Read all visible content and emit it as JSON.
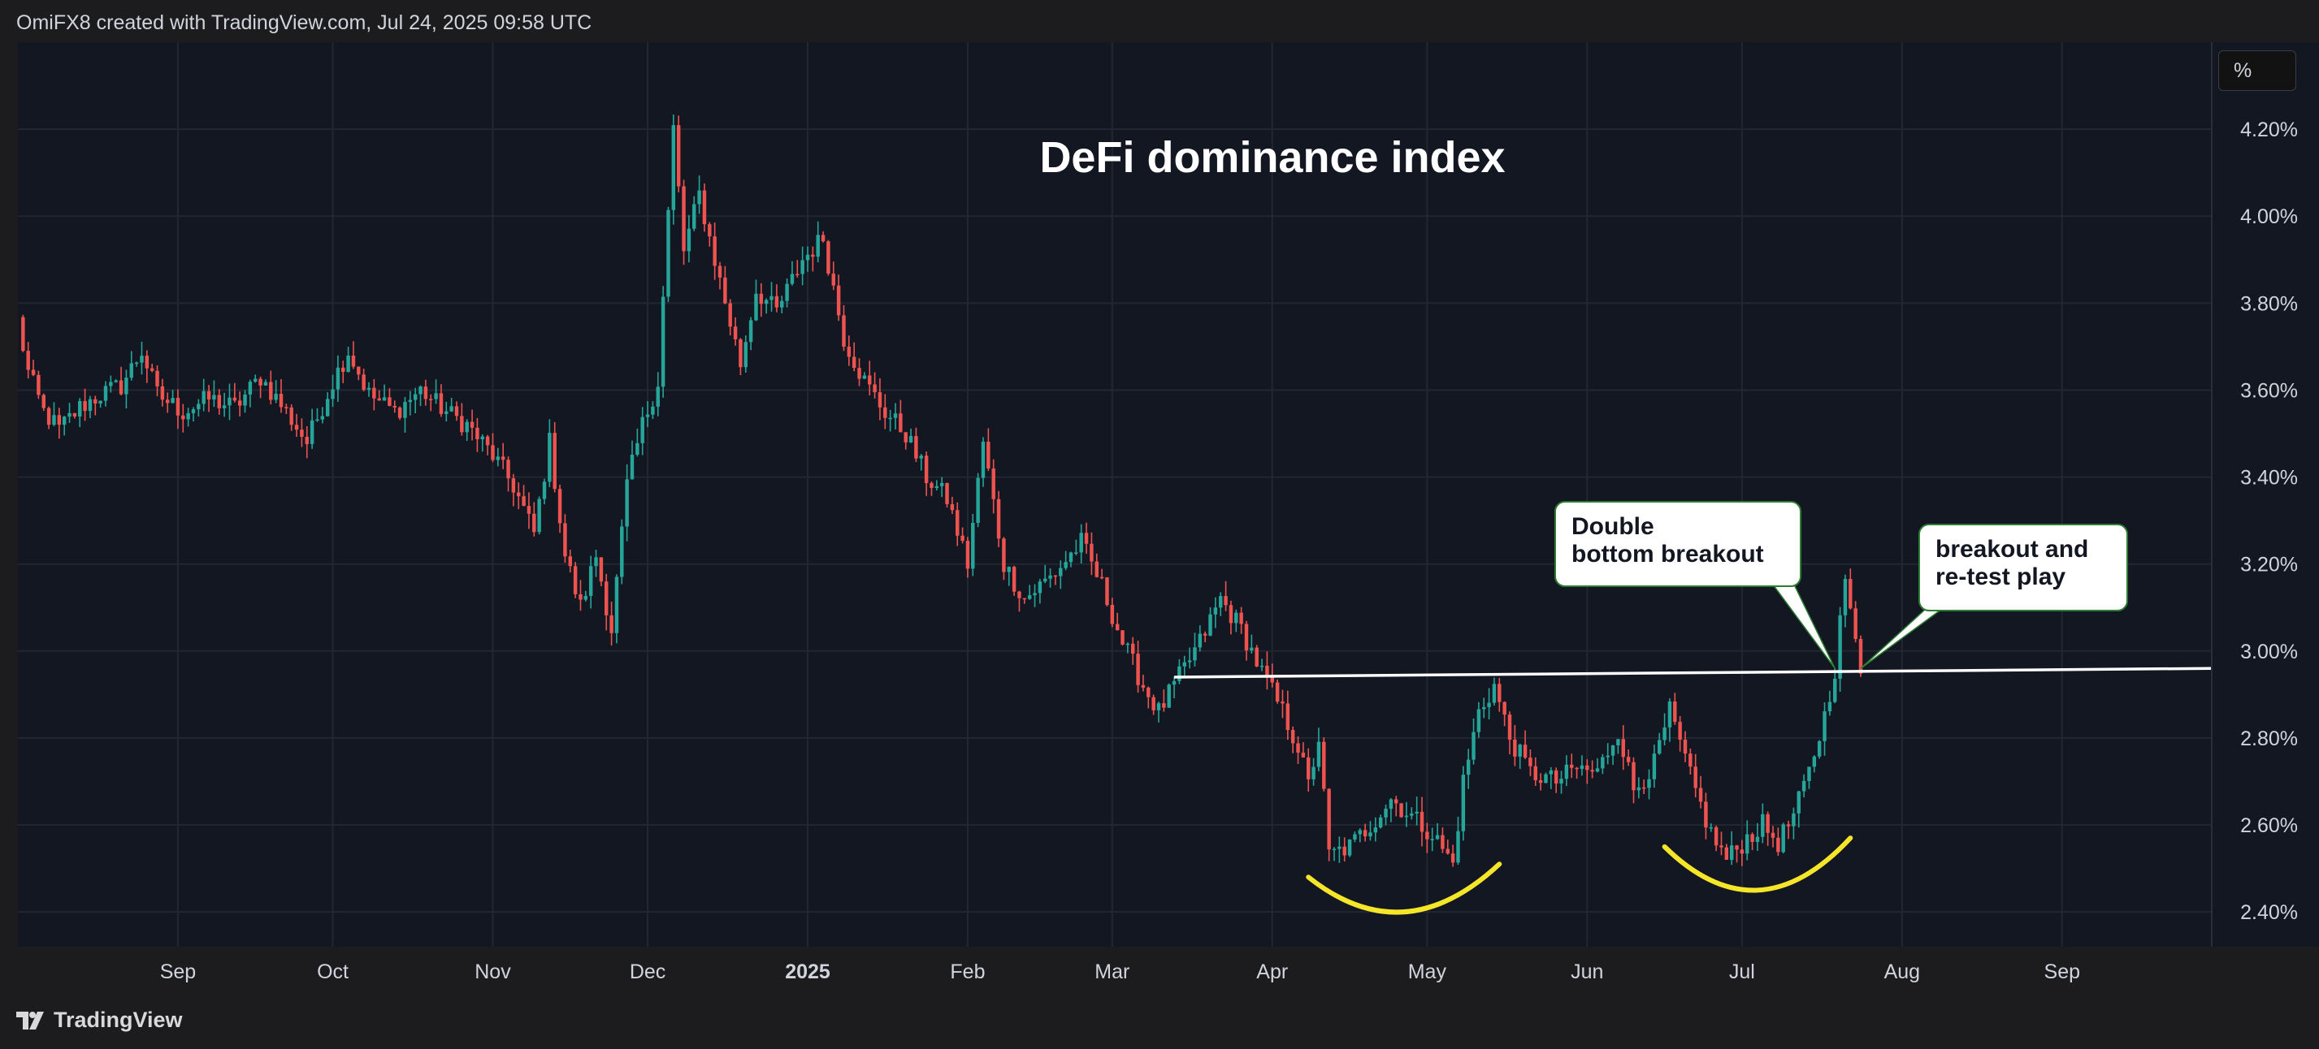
{
  "header": {
    "caption": "OmiFX8 created with TradingView.com, Jul 24, 2025 09:58 UTC"
  },
  "footer": {
    "brand": "TradingView"
  },
  "toolbar": {
    "percent_label": "%"
  },
  "colors": {
    "up": "#26a69a",
    "down": "#ef5350",
    "background": "#131722",
    "grid": "#232732",
    "text": "#d1d4dc",
    "annotation_curve": "#f5e62a"
  },
  "chart_data": {
    "type": "candlestick",
    "title": "DeFi dominance index",
    "xlabel": "",
    "ylabel": "",
    "x_range": [
      "2024-08-01",
      "2025-09-30"
    ],
    "ylim": [
      2.32,
      4.4
    ],
    "y_ticks": [
      2.4,
      2.6,
      2.8,
      3.0,
      3.2,
      3.4,
      3.6,
      3.8,
      4.0,
      4.2
    ],
    "y_tick_labels": [
      "2.40%",
      "2.60%",
      "2.80%",
      "3.00%",
      "3.20%",
      "3.40%",
      "3.60%",
      "3.80%",
      "4.00%",
      "4.20%"
    ],
    "x_ticks": [
      {
        "date": "2024-09-01",
        "label": "Sep",
        "bold": false
      },
      {
        "date": "2024-10-01",
        "label": "Oct",
        "bold": false
      },
      {
        "date": "2024-11-01",
        "label": "Nov",
        "bold": false
      },
      {
        "date": "2024-12-01",
        "label": "Dec",
        "bold": false
      },
      {
        "date": "2025-01-01",
        "label": "2025",
        "bold": true
      },
      {
        "date": "2025-02-01",
        "label": "Feb",
        "bold": false
      },
      {
        "date": "2025-03-01",
        "label": "Mar",
        "bold": false
      },
      {
        "date": "2025-04-01",
        "label": "Apr",
        "bold": false
      },
      {
        "date": "2025-05-01",
        "label": "May",
        "bold": false
      },
      {
        "date": "2025-06-01",
        "label": "Jun",
        "bold": false
      },
      {
        "date": "2025-07-01",
        "label": "Jul",
        "bold": false
      },
      {
        "date": "2025-08-01",
        "label": "Aug",
        "bold": false
      },
      {
        "date": "2025-09-01",
        "label": "Sep",
        "bold": false
      }
    ],
    "grid": true,
    "close_path": [
      [
        "2024-08-01",
        3.76
      ],
      [
        "2024-08-03",
        3.64
      ],
      [
        "2024-08-06",
        3.55
      ],
      [
        "2024-08-09",
        3.51
      ],
      [
        "2024-08-13",
        3.56
      ],
      [
        "2024-08-17",
        3.59
      ],
      [
        "2024-08-21",
        3.61
      ],
      [
        "2024-08-25",
        3.69
      ],
      [
        "2024-08-28",
        3.59
      ],
      [
        "2024-09-02",
        3.55
      ],
      [
        "2024-09-07",
        3.58
      ],
      [
        "2024-09-12",
        3.56
      ],
      [
        "2024-09-17",
        3.63
      ],
      [
        "2024-09-22",
        3.55
      ],
      [
        "2024-09-26",
        3.48
      ],
      [
        "2024-10-01",
        3.62
      ],
      [
        "2024-10-04",
        3.69
      ],
      [
        "2024-10-08",
        3.59
      ],
      [
        "2024-10-13",
        3.55
      ],
      [
        "2024-10-18",
        3.6
      ],
      [
        "2024-10-23",
        3.55
      ],
      [
        "2024-10-27",
        3.52
      ],
      [
        "2024-11-01",
        3.45
      ],
      [
        "2024-11-05",
        3.38
      ],
      [
        "2024-11-09",
        3.27
      ],
      [
        "2024-11-12",
        3.48
      ],
      [
        "2024-11-15",
        3.22
      ],
      [
        "2024-11-18",
        3.1
      ],
      [
        "2024-11-21",
        3.22
      ],
      [
        "2024-11-24",
        3.05
      ],
      [
        "2024-11-27",
        3.38
      ],
      [
        "2024-11-30",
        3.52
      ],
      [
        "2024-12-03",
        3.62
      ],
      [
        "2024-12-06",
        4.2
      ],
      [
        "2024-12-08",
        3.92
      ],
      [
        "2024-12-11",
        4.05
      ],
      [
        "2024-12-15",
        3.85
      ],
      [
        "2024-12-19",
        3.66
      ],
      [
        "2024-12-22",
        3.83
      ],
      [
        "2024-12-26",
        3.78
      ],
      [
        "2024-12-31",
        3.9
      ],
      [
        "2025-01-04",
        3.95
      ],
      [
        "2025-01-08",
        3.72
      ],
      [
        "2025-01-12",
        3.62
      ],
      [
        "2025-01-16",
        3.55
      ],
      [
        "2025-01-20",
        3.5
      ],
      [
        "2025-01-24",
        3.4
      ],
      [
        "2025-01-28",
        3.35
      ],
      [
        "2025-02-01",
        3.2
      ],
      [
        "2025-02-04",
        3.48
      ],
      [
        "2025-02-08",
        3.2
      ],
      [
        "2025-02-12",
        3.12
      ],
      [
        "2025-02-18",
        3.18
      ],
      [
        "2025-02-23",
        3.25
      ],
      [
        "2025-02-27",
        3.15
      ],
      [
        "2025-03-03",
        3.02
      ],
      [
        "2025-03-07",
        2.92
      ],
      [
        "2025-03-10",
        2.86
      ],
      [
        "2025-03-14",
        2.94
      ],
      [
        "2025-03-18",
        3.02
      ],
      [
        "2025-03-22",
        3.12
      ],
      [
        "2025-03-26",
        3.05
      ],
      [
        "2025-03-30",
        2.95
      ],
      [
        "2025-04-03",
        2.86
      ],
      [
        "2025-04-06",
        2.78
      ],
      [
        "2025-04-08",
        2.69
      ],
      [
        "2025-04-10",
        2.8
      ],
      [
        "2025-04-12",
        2.53
      ],
      [
        "2025-04-16",
        2.55
      ],
      [
        "2025-04-20",
        2.6
      ],
      [
        "2025-04-24",
        2.66
      ],
      [
        "2025-04-28",
        2.62
      ],
      [
        "2025-05-02",
        2.58
      ],
      [
        "2025-05-06",
        2.51
      ],
      [
        "2025-05-08",
        2.7
      ],
      [
        "2025-05-11",
        2.86
      ],
      [
        "2025-05-14",
        2.92
      ],
      [
        "2025-05-17",
        2.8
      ],
      [
        "2025-05-21",
        2.72
      ],
      [
        "2025-05-26",
        2.7
      ],
      [
        "2025-05-30",
        2.73
      ],
      [
        "2025-06-03",
        2.72
      ],
      [
        "2025-06-07",
        2.82
      ],
      [
        "2025-06-10",
        2.68
      ],
      [
        "2025-06-14",
        2.74
      ],
      [
        "2025-06-17",
        2.86
      ],
      [
        "2025-06-21",
        2.71
      ],
      [
        "2025-06-25",
        2.58
      ],
      [
        "2025-06-28",
        2.52
      ],
      [
        "2025-07-02",
        2.57
      ],
      [
        "2025-07-05",
        2.6
      ],
      [
        "2025-07-08",
        2.56
      ],
      [
        "2025-07-11",
        2.62
      ],
      [
        "2025-07-14",
        2.72
      ],
      [
        "2025-07-17",
        2.85
      ],
      [
        "2025-07-19",
        2.96
      ],
      [
        "2025-07-21",
        3.17
      ],
      [
        "2025-07-22",
        3.08
      ],
      [
        "2025-07-24",
        2.96
      ]
    ],
    "annotations": {
      "horizontal_line": {
        "from": "2025-03-13",
        "to": "2025-09-30",
        "y_start": 2.94,
        "y_end": 2.96
      },
      "callouts": [
        {
          "text_lines": [
            "Double",
            "bottom breakout"
          ],
          "pointer": {
            "date": "2025-07-19",
            "y": 2.96
          }
        },
        {
          "text_lines": [
            "breakout and",
            "re-test play"
          ],
          "pointer": {
            "date": "2025-07-24",
            "y": 2.96
          }
        }
      ],
      "bottom_arcs": [
        {
          "from": "2025-04-08",
          "to": "2025-05-15",
          "left_y": 2.48,
          "bottom_y": 2.4,
          "right_y": 2.51
        },
        {
          "from": "2025-06-16",
          "to": "2025-07-22",
          "left_y": 2.55,
          "bottom_y": 2.45,
          "right_y": 2.57
        }
      ]
    }
  }
}
